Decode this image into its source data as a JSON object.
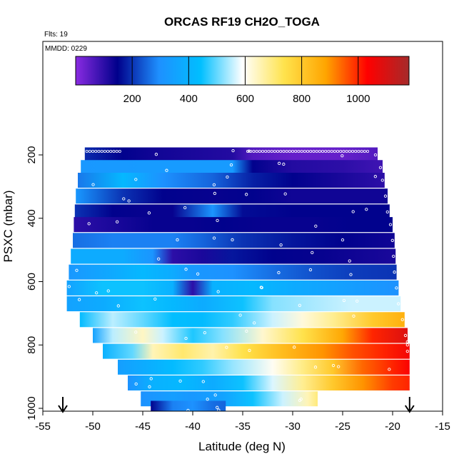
{
  "chart_data": {
    "type": "heatmap",
    "title": "ORCAS RF19 CH2O_TOGA",
    "flight_note": "Flts: 19",
    "date_note": "MMDD: 0229",
    "xlabel": "Latitude (deg N)",
    "ylabel": "PSXC (mbar)",
    "xlim": [
      -55,
      -15
    ],
    "ylim": [
      1000,
      100
    ],
    "x_ticks": [
      "-55",
      "-50",
      "-45",
      "-40",
      "-35",
      "-30",
      "-25",
      "-20",
      "-15"
    ],
    "y_ticks": [
      "200",
      "400",
      "600",
      "800",
      "1000"
    ],
    "colorbar": {
      "range": [
        0,
        1180
      ],
      "ticks": [
        "200",
        "400",
        "600",
        "800",
        "1000"
      ],
      "tick_values": [
        200,
        400,
        600,
        800,
        1000
      ],
      "colors": [
        "#8a2be2",
        "#00008b",
        "#1e90ff",
        "#00bfff",
        "#ffffff",
        "#ffe34d",
        "#ffa500",
        "#ff0000",
        "#a52a2a"
      ]
    },
    "arrows_x": [
      -53,
      -18.3
    ],
    "bands": [
      {
        "p": 200,
        "x0": -50.8,
        "x1": -21.5,
        "stops": [
          [
            -50.8,
            190
          ],
          [
            -47,
            150
          ],
          [
            -44,
            130
          ],
          [
            -40,
            120
          ],
          [
            -36,
            110
          ],
          [
            -34,
            60
          ],
          [
            -30,
            40
          ],
          [
            -25,
            40
          ],
          [
            -21.5,
            60
          ]
        ]
      },
      {
        "p": 240,
        "x0": -51.2,
        "x1": -21.0,
        "stops": [
          [
            -51.2,
            320
          ],
          [
            -45,
            330
          ],
          [
            -40,
            330
          ],
          [
            -36,
            330
          ],
          [
            -34,
            150
          ],
          [
            -30,
            110
          ],
          [
            -25,
            100
          ],
          [
            -21,
            80
          ]
        ]
      },
      {
        "p": 280,
        "x0": -51.5,
        "x1": -20.8,
        "stops": [
          [
            -51.5,
            270
          ],
          [
            -47,
            420
          ],
          [
            -43,
            300
          ],
          [
            -38,
            250
          ],
          [
            -34,
            180
          ],
          [
            -30,
            150
          ],
          [
            -25,
            120
          ],
          [
            -20.8,
            100
          ]
        ]
      },
      {
        "p": 330,
        "x0": -51.7,
        "x1": -20.5,
        "stops": [
          [
            -51.7,
            320
          ],
          [
            -47,
            200
          ],
          [
            -43,
            150
          ],
          [
            -38,
            140
          ],
          [
            -34,
            150
          ],
          [
            -30,
            130
          ],
          [
            -25,
            130
          ],
          [
            -20.5,
            130
          ]
        ]
      },
      {
        "p": 380,
        "x0": -51.8,
        "x1": -20.3,
        "stops": [
          [
            -51.8,
            200
          ],
          [
            -48,
            150
          ],
          [
            -45,
            140
          ],
          [
            -42,
            140
          ],
          [
            -38,
            310
          ],
          [
            -35,
            160
          ],
          [
            -30,
            150
          ],
          [
            -25,
            150
          ],
          [
            -20.3,
            150
          ]
        ]
      },
      {
        "p": 420,
        "x0": -51.9,
        "x1": -20.0,
        "stops": [
          [
            -51.9,
            100
          ],
          [
            -48,
            120
          ],
          [
            -44,
            140
          ],
          [
            -40,
            140
          ],
          [
            -37,
            150
          ],
          [
            -33,
            140
          ],
          [
            -28,
            140
          ],
          [
            -24,
            150
          ],
          [
            -20,
            150
          ]
        ]
      },
      {
        "p": 470,
        "x0": -52.0,
        "x1": -19.8,
        "stops": [
          [
            -52,
            260
          ],
          [
            -48,
            280
          ],
          [
            -45,
            280
          ],
          [
            -42,
            280
          ],
          [
            -39,
            250
          ],
          [
            -35,
            200
          ],
          [
            -30,
            170
          ],
          [
            -25,
            150
          ],
          [
            -19.8,
            130
          ]
        ]
      },
      {
        "p": 520,
        "x0": -52.2,
        "x1": -19.7,
        "stops": [
          [
            -52.2,
            380
          ],
          [
            -47,
            380
          ],
          [
            -44,
            310
          ],
          [
            -42,
            100
          ],
          [
            -39,
            120
          ],
          [
            -36,
            170
          ],
          [
            -32,
            150
          ],
          [
            -27,
            140
          ],
          [
            -19.7,
            120
          ]
        ]
      },
      {
        "p": 570,
        "x0": -52.4,
        "x1": -19.6,
        "stops": [
          [
            -52.4,
            320
          ],
          [
            -49,
            360
          ],
          [
            -45,
            420
          ],
          [
            -42,
            380
          ],
          [
            -40,
            320
          ],
          [
            -36,
            300
          ],
          [
            -32,
            260
          ],
          [
            -28,
            230
          ],
          [
            -24,
            210
          ],
          [
            -19.6,
            200
          ]
        ]
      },
      {
        "p": 620,
        "x0": -52.6,
        "x1": -19.4,
        "stops": [
          [
            -52.6,
            350
          ],
          [
            -49,
            450
          ],
          [
            -45,
            450
          ],
          [
            -42,
            400
          ],
          [
            -40,
            100
          ],
          [
            -38,
            400
          ],
          [
            -34,
            420
          ],
          [
            -30,
            380
          ],
          [
            -26,
            350
          ],
          [
            -23,
            330
          ],
          [
            -19.4,
            300
          ]
        ]
      },
      {
        "p": 670,
        "x0": -52.6,
        "x1": -19.2,
        "stops": [
          [
            -52.6,
            350
          ],
          [
            -49,
            380
          ],
          [
            -45,
            450
          ],
          [
            -42,
            420
          ],
          [
            -39,
            380
          ],
          [
            -35,
            450
          ],
          [
            -32,
            520
          ],
          [
            -28,
            540
          ],
          [
            -24,
            560
          ],
          [
            -19.2,
            560
          ]
        ]
      },
      {
        "p": 720,
        "x0": -51.3,
        "x1": -18.8,
        "stops": [
          [
            -51.3,
            430
          ],
          [
            -48,
            550
          ],
          [
            -45,
            500
          ],
          [
            -42,
            440
          ],
          [
            -39,
            430
          ],
          [
            -36,
            470
          ],
          [
            -32,
            560
          ],
          [
            -29,
            620
          ],
          [
            -26,
            680
          ],
          [
            -22,
            800
          ],
          [
            -18.8,
            860
          ]
        ]
      },
      {
        "p": 770,
        "x0": -50.0,
        "x1": -18.5,
        "stops": [
          [
            -50,
            350
          ],
          [
            -48,
            550
          ],
          [
            -45,
            640
          ],
          [
            -43,
            560
          ],
          [
            -40,
            460
          ],
          [
            -37,
            520
          ],
          [
            -33,
            630
          ],
          [
            -29,
            740
          ],
          [
            -25,
            880
          ],
          [
            -22,
            1000
          ],
          [
            -18.5,
            1090
          ]
        ]
      },
      {
        "p": 820,
        "x0": -49.0,
        "x1": -18.3,
        "stops": [
          [
            -49,
            400
          ],
          [
            -46,
            500
          ],
          [
            -44,
            650
          ],
          [
            -41,
            710
          ],
          [
            -38,
            660
          ],
          [
            -35,
            740
          ],
          [
            -31,
            830
          ],
          [
            -27,
            900
          ],
          [
            -24,
            960
          ],
          [
            -21,
            1000
          ],
          [
            -18.3,
            1050
          ]
        ]
      },
      {
        "p": 870,
        "x0": -47.5,
        "x1": -18.3,
        "stops": [
          [
            -47.5,
            340
          ],
          [
            -45,
            380
          ],
          [
            -42,
            430
          ],
          [
            -39,
            470
          ],
          [
            -36,
            530
          ],
          [
            -32,
            600
          ],
          [
            -29,
            690
          ],
          [
            -26,
            800
          ],
          [
            -23,
            940
          ],
          [
            -20,
            1000
          ],
          [
            -18.3,
            1040
          ]
        ]
      },
      {
        "p": 920,
        "x0": -46.5,
        "x1": -18.3,
        "stops": [
          [
            -46.5,
            300
          ],
          [
            -44,
            400
          ],
          [
            -41,
            420
          ],
          [
            -38,
            380
          ],
          [
            -35,
            450
          ],
          [
            -32,
            570
          ],
          [
            -29,
            680
          ],
          [
            -26,
            800
          ],
          [
            -23,
            900
          ],
          [
            -20,
            980
          ],
          [
            -18.3,
            1000
          ]
        ]
      },
      {
        "p": 970,
        "x0": -45.2,
        "x1": -27.5,
        "stops": [
          [
            -45.2,
            300
          ],
          [
            -42,
            340
          ],
          [
            -40,
            320
          ],
          [
            -37,
            350
          ],
          [
            -34,
            450
          ],
          [
            -31,
            560
          ],
          [
            -28.5,
            650
          ],
          [
            -27.5,
            700
          ]
        ]
      },
      {
        "p": 1000,
        "x0": -44.2,
        "x1": -36.7,
        "stops": [
          [
            -44.2,
            150
          ],
          [
            -42,
            280
          ],
          [
            -40,
            300
          ],
          [
            -38,
            260
          ],
          [
            -36.7,
            250
          ]
        ]
      }
    ]
  }
}
